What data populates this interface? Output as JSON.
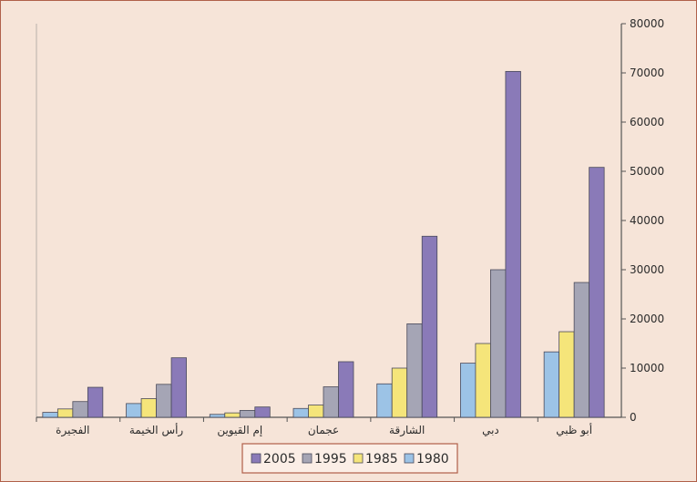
{
  "chart_data": {
    "type": "bar",
    "categories": [
      "أبو ظبي",
      "دبي",
      "الشارقة",
      "عجمان",
      "إم القيوين",
      "رأس الخيمة",
      "الفجيرة"
    ],
    "series": [
      {
        "name": "1980",
        "color": "#9cc3e6",
        "values": [
          13300,
          11000,
          6800,
          1800,
          600,
          2800,
          1000
        ]
      },
      {
        "name": "1985",
        "color": "#f5e57a",
        "values": [
          17400,
          15000,
          10000,
          2500,
          900,
          3800,
          1700
        ]
      },
      {
        "name": "1995",
        "color": "#a5a5b5",
        "values": [
          27400,
          30000,
          19000,
          6200,
          1400,
          6700,
          3200
        ]
      },
      {
        "name": "2005",
        "color": "#8a7ab8",
        "values": [
          50800,
          70300,
          36800,
          11300,
          2100,
          12100,
          6100
        ]
      }
    ],
    "ylim": [
      0,
      80000
    ],
    "yticks": [
      "0",
      "10000",
      "20000",
      "30000",
      "40000",
      "50000",
      "60000",
      "70000",
      "80000"
    ],
    "legend_position": "bottom",
    "legend_order": [
      "2005",
      "1995",
      "1985",
      "1980"
    ],
    "axis_side": "right",
    "category_order": "right-to-left",
    "title": "",
    "xlabel": "",
    "ylabel": ""
  }
}
